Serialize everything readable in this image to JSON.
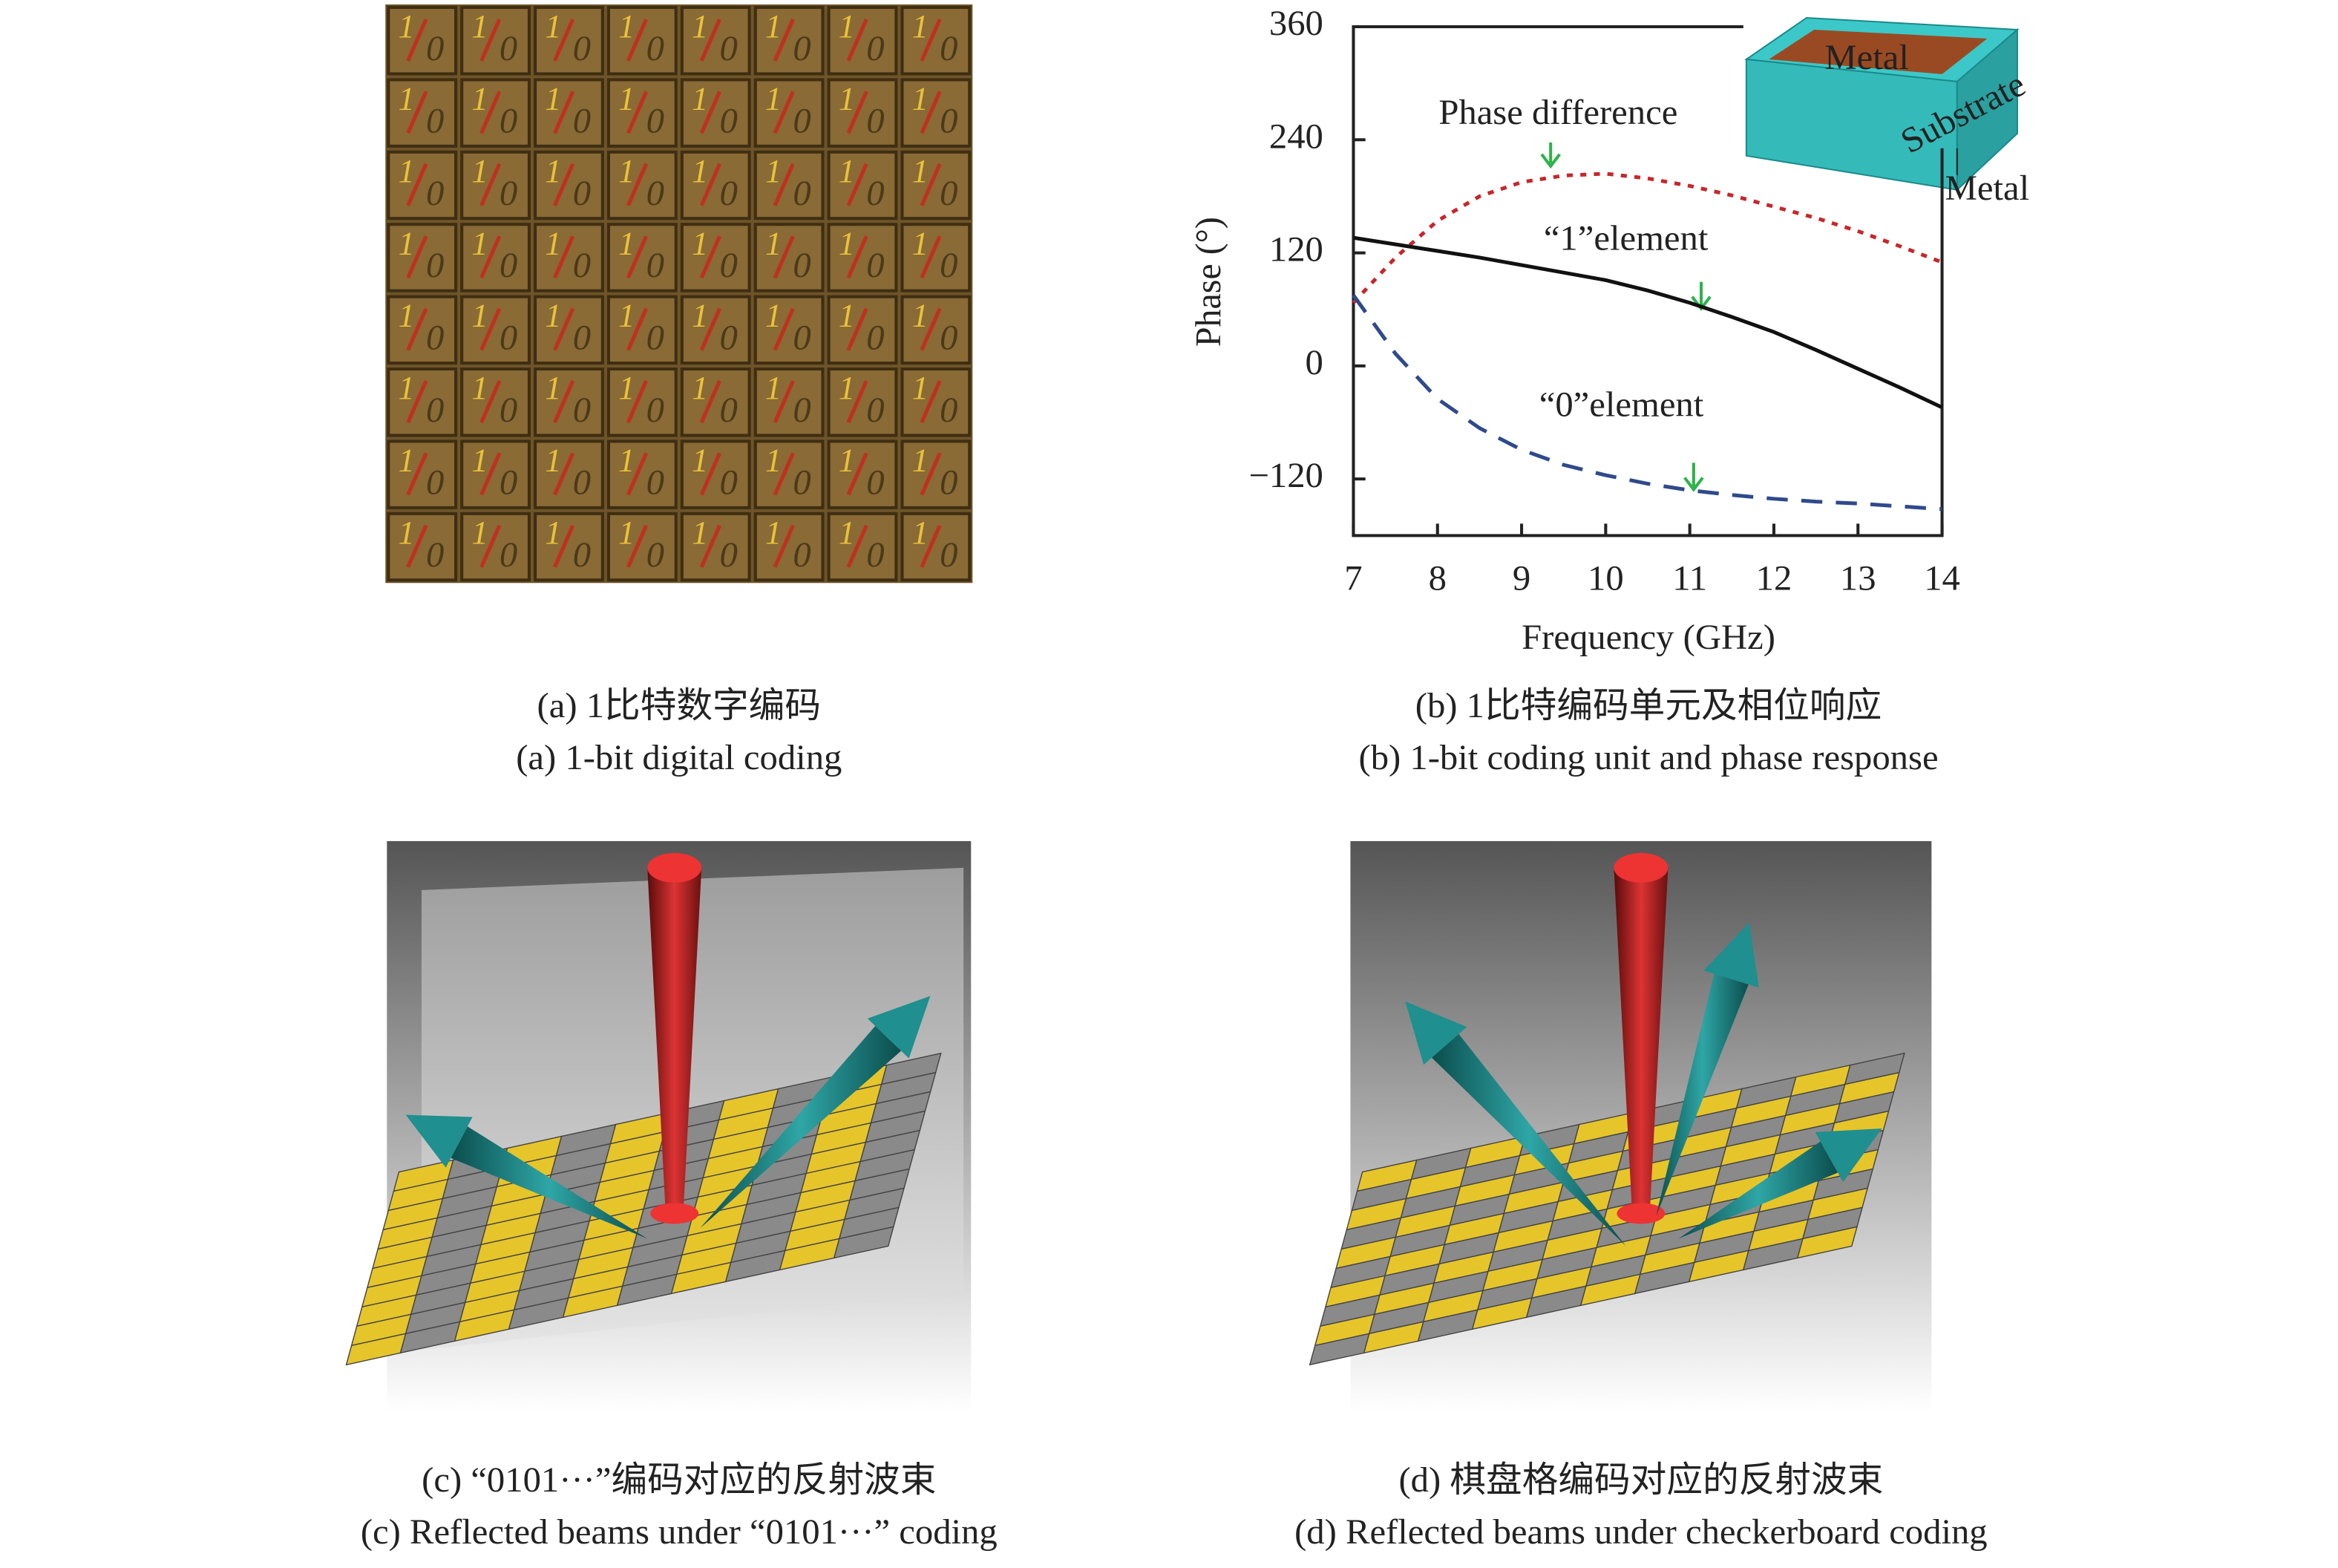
{
  "chart_data": {
    "type": "line",
    "x": [
      7,
      7.5,
      8,
      8.5,
      9,
      9.5,
      10,
      10.5,
      11,
      11.5,
      12,
      12.5,
      13,
      13.5,
      14
    ],
    "series": [
      {
        "name": "Phase difference",
        "color": "#c8262b",
        "dash": "dot",
        "values": [
          67,
          115,
          154,
          180,
          195,
          202,
          204,
          199,
          191,
          181,
          169,
          157,
          143,
          127,
          110
        ]
      },
      {
        "name": "“1”element",
        "color": "#111111",
        "dash": "solid",
        "values": [
          136,
          129,
          122,
          115,
          107,
          99,
          91,
          80,
          67,
          52,
          36,
          17,
          -3,
          -23,
          -44
        ]
      },
      {
        "name": "“0”element",
        "color": "#2f4a8c",
        "dash": "dash",
        "values": [
          75,
          13,
          -35,
          -66,
          -89,
          -105,
          -116,
          -125,
          -132,
          -137,
          -141,
          -144,
          -146,
          -149,
          -152
        ]
      }
    ],
    "xlim": [
      7,
      14
    ],
    "xticks": [
      7,
      8,
      9,
      10,
      11,
      12,
      13,
      14
    ],
    "ylim": [
      -180,
      360
    ],
    "yticks": [
      {
        "value": -120,
        "label": "−120"
      },
      0,
      120,
      240,
      360
    ],
    "xlabel": "Frequency (GHz)",
    "ylabel": "Phase (°)",
    "inset_labels": [
      "Metal",
      "Substrate",
      "Metal"
    ]
  },
  "panel_a": {
    "tile_text": [
      "1",
      "0"
    ],
    "caption_cn": "(a) 1比特数字编码",
    "caption_en": "(a) 1-bit digital coding"
  },
  "panel_b": {
    "caption_cn": "(b) 1比特编码单元及相位响应",
    "caption_en": "(b) 1-bit coding unit and phase response"
  },
  "panel_c": {
    "caption_cn": "(c) “0101···”编码对应的反射波束",
    "caption_en": "(c) Reflected beams under “0101···” coding"
  },
  "panel_d": {
    "caption_cn": "(d) 棋盘格编码对应的反射波束",
    "caption_en": "(d) Reflected beams under checkerboard coding"
  }
}
